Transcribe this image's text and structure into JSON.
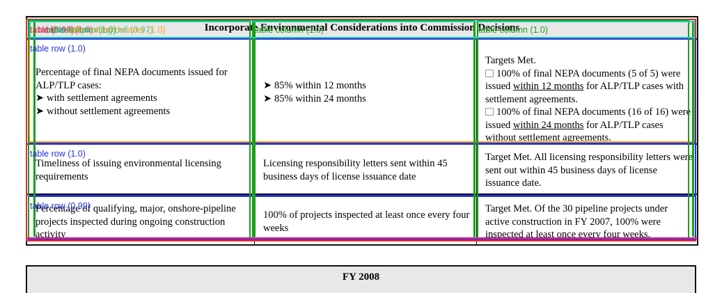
{
  "table": {
    "title": "Incorporate Environmental Considerations into Commission Decisions",
    "rows": [
      {
        "measure_intro": "Percentage of final NEPA documents issued for ALP/TLP cases:",
        "measure_items": [
          "with settlement agreements",
          "without settlement agreements"
        ],
        "target_items": [
          "85% within 12 months",
          "85% within 24 months"
        ],
        "result_heading": "Targets Met.",
        "result_items": [
          {
            "pre": "100% of final NEPA documents (5 of 5) were issued ",
            "underlined": "within 12 months",
            "post": " for ALP/TLP cases with settlement agreements."
          },
          {
            "pre": "100% of final NEPA documents (16 of 16) were issued ",
            "underlined": "within 24 months",
            "post": " for ALP/TLP cases without settlement agreements."
          }
        ]
      },
      {
        "measure": "Timeliness of issuing environmental licensing requirements",
        "target": "Licensing responsibility letters sent within 45 business days of license issuance date",
        "result": "Target Met.  All licensing responsibility letters were sent out within 45 business days of license issuance date."
      },
      {
        "measure": "Percentage of qualifying, major, onshore-pipeline projects inspected during ongoing construction activity",
        "target": "100% of projects inspected at least once every four weeks",
        "result": "Target Met.  Of the 30 pipeline projects under active construction in FY 2007, 100% were inspected at least once every four weeks."
      }
    ]
  },
  "next_table": {
    "title": "FY 2008"
  },
  "annotations": {
    "table_label": "table (0.99)",
    "cell_label": "table cell (1.0)",
    "column_label": "table column (1.0)",
    "row_labels": [
      "table row (1.0)",
      "table row (1.0)",
      "table row (0.99)"
    ],
    "spanning_label": "table spanning cell (0.97)",
    "header_label": "table column header (1.0)",
    "colors": {
      "table": "#e03030",
      "row": "#2233dd",
      "column": "#18a018",
      "header": "#ff9900",
      "spanning": "#22ccbb",
      "cell_magenta": "#cc2288"
    }
  }
}
